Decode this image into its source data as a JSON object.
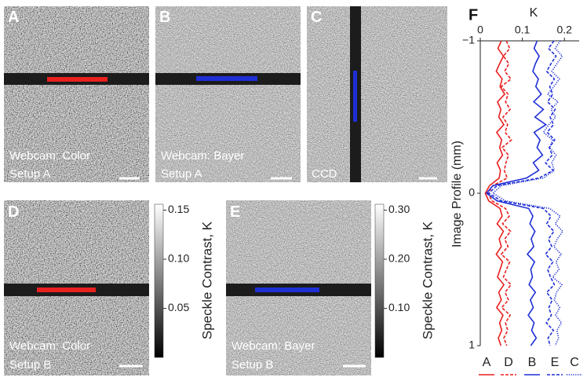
{
  "panels": [
    {
      "label": "A",
      "caption": [
        "Webcam: Color",
        "Setup A"
      ]
    },
    {
      "label": "B",
      "caption": [
        "Webcam: Bayer",
        "Setup A"
      ]
    },
    {
      "label": "C",
      "caption": [
        "CCD"
      ]
    },
    {
      "label": "D",
      "caption": [
        "Webcam: Color",
        "Setup B"
      ]
    },
    {
      "label": "E",
      "caption": [
        "Webcam: Bayer",
        "Setup B"
      ]
    }
  ],
  "colorbars": [
    {
      "label": "Speckle Contrast, K",
      "lim": [
        0,
        0.156
      ],
      "ticks": [
        0.15,
        {
          "value": 0.1,
          "label": "0.10"
        },
        0.05
      ]
    },
    {
      "label": "Speckle Contrast, K",
      "lim": [
        0,
        0.312
      ],
      "ticks": [
        {
          "value": 0.3,
          "label": "0.30"
        },
        {
          "value": 0.2,
          "label": "0.20"
        },
        {
          "value": 0.1,
          "label": "0.10"
        }
      ]
    }
  ],
  "chart_data": {
    "type": "line",
    "panel_label": "F",
    "xlabel": "K",
    "ylabel": "Image Profile (mm)",
    "xlim": [
      0,
      0.235
    ],
    "xticks": [
      0,
      0.1,
      0.2
    ],
    "ylim": [
      -1,
      1
    ],
    "y_inverted": true,
    "yticks": [
      {
        "value": -1,
        "label": "−1"
      },
      0,
      1
    ],
    "positions": [
      -1,
      -0.95,
      -0.9,
      -0.85,
      -0.8,
      -0.75,
      -0.7,
      -0.65,
      -0.6,
      -0.55,
      -0.5,
      -0.45,
      -0.4,
      -0.35,
      -0.3,
      -0.25,
      -0.2,
      -0.15,
      -0.1,
      -0.05,
      0,
      0.05,
      0.1,
      0.15,
      0.2,
      0.25,
      0.3,
      0.35,
      0.4,
      0.45,
      0.5,
      0.55,
      0.6,
      0.65,
      0.7,
      0.75,
      0.8,
      0.85,
      0.9,
      0.95,
      1
    ],
    "series": [
      {
        "name": "A",
        "color": "#e8201f",
        "style": "solid",
        "values": [
          0.05,
          0.042,
          0.055,
          0.046,
          0.038,
          0.052,
          0.047,
          0.058,
          0.041,
          0.049,
          0.044,
          0.056,
          0.039,
          0.051,
          0.046,
          0.053,
          0.04,
          0.048,
          0.045,
          0.022,
          0.012,
          0.02,
          0.047,
          0.052,
          0.04,
          0.055,
          0.045,
          0.05,
          0.038,
          0.053,
          0.047,
          0.041,
          0.056,
          0.044,
          0.05,
          0.039,
          0.054,
          0.046,
          0.051,
          0.043,
          0.049
        ]
      },
      {
        "name": "D",
        "color": "#e8201f",
        "style": "dashed",
        "values": [
          0.062,
          0.07,
          0.055,
          0.068,
          0.058,
          0.073,
          0.05,
          0.066,
          0.06,
          0.071,
          0.054,
          0.065,
          0.059,
          0.074,
          0.052,
          0.067,
          0.061,
          0.057,
          0.064,
          0.03,
          0.018,
          0.028,
          0.06,
          0.069,
          0.053,
          0.072,
          0.058,
          0.066,
          0.05,
          0.07,
          0.062,
          0.055,
          0.073,
          0.059,
          0.067,
          0.051,
          0.071,
          0.06,
          0.065,
          0.056,
          0.063
        ]
      },
      {
        "name": "B",
        "color": "#1f2fd6",
        "style": "solid",
        "values": [
          0.135,
          0.128,
          0.14,
          0.131,
          0.125,
          0.138,
          0.132,
          0.145,
          0.127,
          0.15,
          0.13,
          0.156,
          0.128,
          0.142,
          0.135,
          0.148,
          0.126,
          0.139,
          0.11,
          0.03,
          0.015,
          0.04,
          0.115,
          0.125,
          0.118,
          0.13,
          0.121,
          0.127,
          0.112,
          0.129,
          0.12,
          0.124,
          0.116,
          0.131,
          0.119,
          0.126,
          0.114,
          0.128,
          0.122,
          0.133,
          0.12
        ]
      },
      {
        "name": "E",
        "color": "#1f2fd6",
        "style": "dashed",
        "values": [
          0.175,
          0.162,
          0.18,
          0.168,
          0.158,
          0.176,
          0.165,
          0.172,
          0.16,
          0.178,
          0.166,
          0.174,
          0.159,
          0.177,
          0.164,
          0.171,
          0.155,
          0.173,
          0.14,
          0.04,
          0.02,
          0.05,
          0.15,
          0.168,
          0.158,
          0.175,
          0.162,
          0.17,
          0.155,
          0.173,
          0.16,
          0.167,
          0.176,
          0.158,
          0.171,
          0.163,
          0.169,
          0.157,
          0.174,
          0.161,
          0.166
        ]
      },
      {
        "name": "C",
        "color": "#1f2fd6",
        "style": "dotted",
        "values": [
          0.19,
          0.178,
          0.195,
          0.182,
          0.17,
          0.188,
          0.175,
          0.16,
          0.185,
          0.168,
          0.179,
          0.163,
          0.15,
          0.172,
          0.165,
          0.18,
          0.17,
          0.176,
          0.15,
          0.05,
          0.03,
          0.06,
          0.165,
          0.19,
          0.178,
          0.196,
          0.183,
          0.175,
          0.192,
          0.18,
          0.187,
          0.172,
          0.194,
          0.181,
          0.176,
          0.189,
          0.179,
          0.193,
          0.182,
          0.186,
          0.178
        ]
      }
    ]
  }
}
